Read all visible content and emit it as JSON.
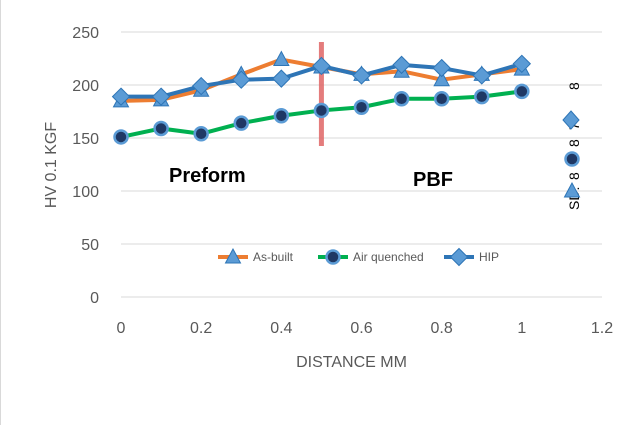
{
  "chart_data": {
    "type": "line",
    "xlabel": "DISTANCE MM",
    "ylabel": "HV 0.1 KGF",
    "xlim": [
      0,
      1.2
    ],
    "ylim": [
      0,
      250
    ],
    "x_ticks": [
      "0",
      "0.2",
      "0.4",
      "0.6",
      "0.8",
      "1",
      "1.2"
    ],
    "y_ticks": [
      "0",
      "50",
      "100",
      "150",
      "200",
      "250"
    ],
    "x": [
      0,
      0.1,
      0.2,
      0.3,
      0.4,
      0.5,
      0.6,
      0.7,
      0.8,
      0.9,
      1.0
    ],
    "series": [
      {
        "name": "As-built",
        "color": "#ed7d31",
        "marker": "triangle",
        "values": [
          185,
          186,
          195,
          210,
          224,
          217,
          210,
          213,
          205,
          210,
          215
        ]
      },
      {
        "name": "Air quenched",
        "color": "#00b050",
        "marker": "circle",
        "values": [
          151,
          159,
          154,
          164,
          171,
          176,
          179,
          187,
          187,
          189,
          194
        ]
      },
      {
        "name": "HIP",
        "color": "#2e75b6",
        "marker": "diamond",
        "values": [
          189,
          189,
          199,
          205,
          206,
          218,
          209,
          219,
          216,
          209,
          220
        ]
      }
    ],
    "annotations": {
      "left_region": "Preform",
      "right_region": "PBF",
      "divider_x": 0.5,
      "sd_label": "SD:",
      "sd_values": [
        "8",
        "8",
        "7",
        "8"
      ]
    },
    "divider_color": "#e06666",
    "grid": "horizontal",
    "legend_position": "inside-bottom-center"
  }
}
